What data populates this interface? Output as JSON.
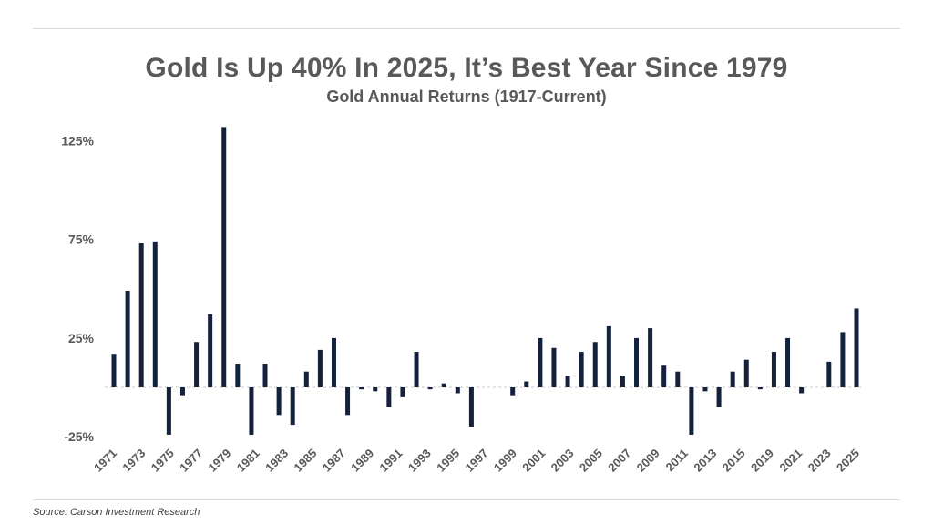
{
  "header": {
    "title": "Gold Is Up 40% In 2025, It’s Best Year Since 1979",
    "subtitle": "Gold Annual Returns (1917-Current)"
  },
  "footer": {
    "source": "Source: Carson Investment Research"
  },
  "colors": {
    "bar": "#14213d",
    "text": "#595959",
    "zero_line": "#c8c8c8"
  },
  "chart_data": {
    "type": "bar",
    "title": "Gold Is Up 40% In 2025, It’s Best Year Since 1979",
    "subtitle": "Gold Annual Returns (1917-Current)",
    "xlabel": "",
    "ylabel": "",
    "ylim": [
      -25,
      130
    ],
    "yticks": [
      -25,
      25,
      75,
      125
    ],
    "ytick_labels": [
      "-25%",
      "25%",
      "75%",
      "125%"
    ],
    "grid": false,
    "categories": [
      1971,
      1972,
      1973,
      1974,
      1975,
      1976,
      1977,
      1978,
      1979,
      1980,
      1981,
      1982,
      1983,
      1984,
      1985,
      1986,
      1987,
      1988,
      1989,
      1990,
      1991,
      1992,
      1993,
      1994,
      1995,
      1996,
      1997,
      1998,
      1999,
      2000,
      2001,
      2002,
      2003,
      2004,
      2005,
      2006,
      2007,
      2008,
      2009,
      2010,
      2011,
      2012,
      2013,
      2014,
      2015,
      2016,
      2017,
      2018,
      2019,
      2020,
      2021,
      2022,
      2023,
      2024,
      2025
    ],
    "xtick_labels": [
      "1971",
      "1973",
      "1975",
      "1977",
      "1979",
      "1981",
      "1983",
      "1985",
      "1987",
      "1989",
      "1991",
      "1993",
      "1995",
      "1997",
      "1999",
      "2001",
      "2003",
      "2005",
      "2007",
      "2009",
      "2011",
      "2013",
      "2015",
      "2019",
      "2021",
      "2023",
      "2025"
    ],
    "values": [
      17,
      49,
      73,
      74,
      -24,
      -4,
      23,
      37,
      132,
      12,
      -24,
      12,
      -14,
      -19,
      8,
      19,
      25,
      -14,
      -1,
      -2,
      -10,
      -5,
      18,
      -1,
      2,
      -3,
      -20,
      0,
      0,
      -4,
      3,
      25,
      20,
      6,
      18,
      23,
      31,
      6,
      25,
      30,
      11,
      8,
      -24,
      -2,
      -10,
      8,
      14,
      -1,
      18,
      25,
      -3,
      0,
      13,
      28,
      40
    ]
  }
}
